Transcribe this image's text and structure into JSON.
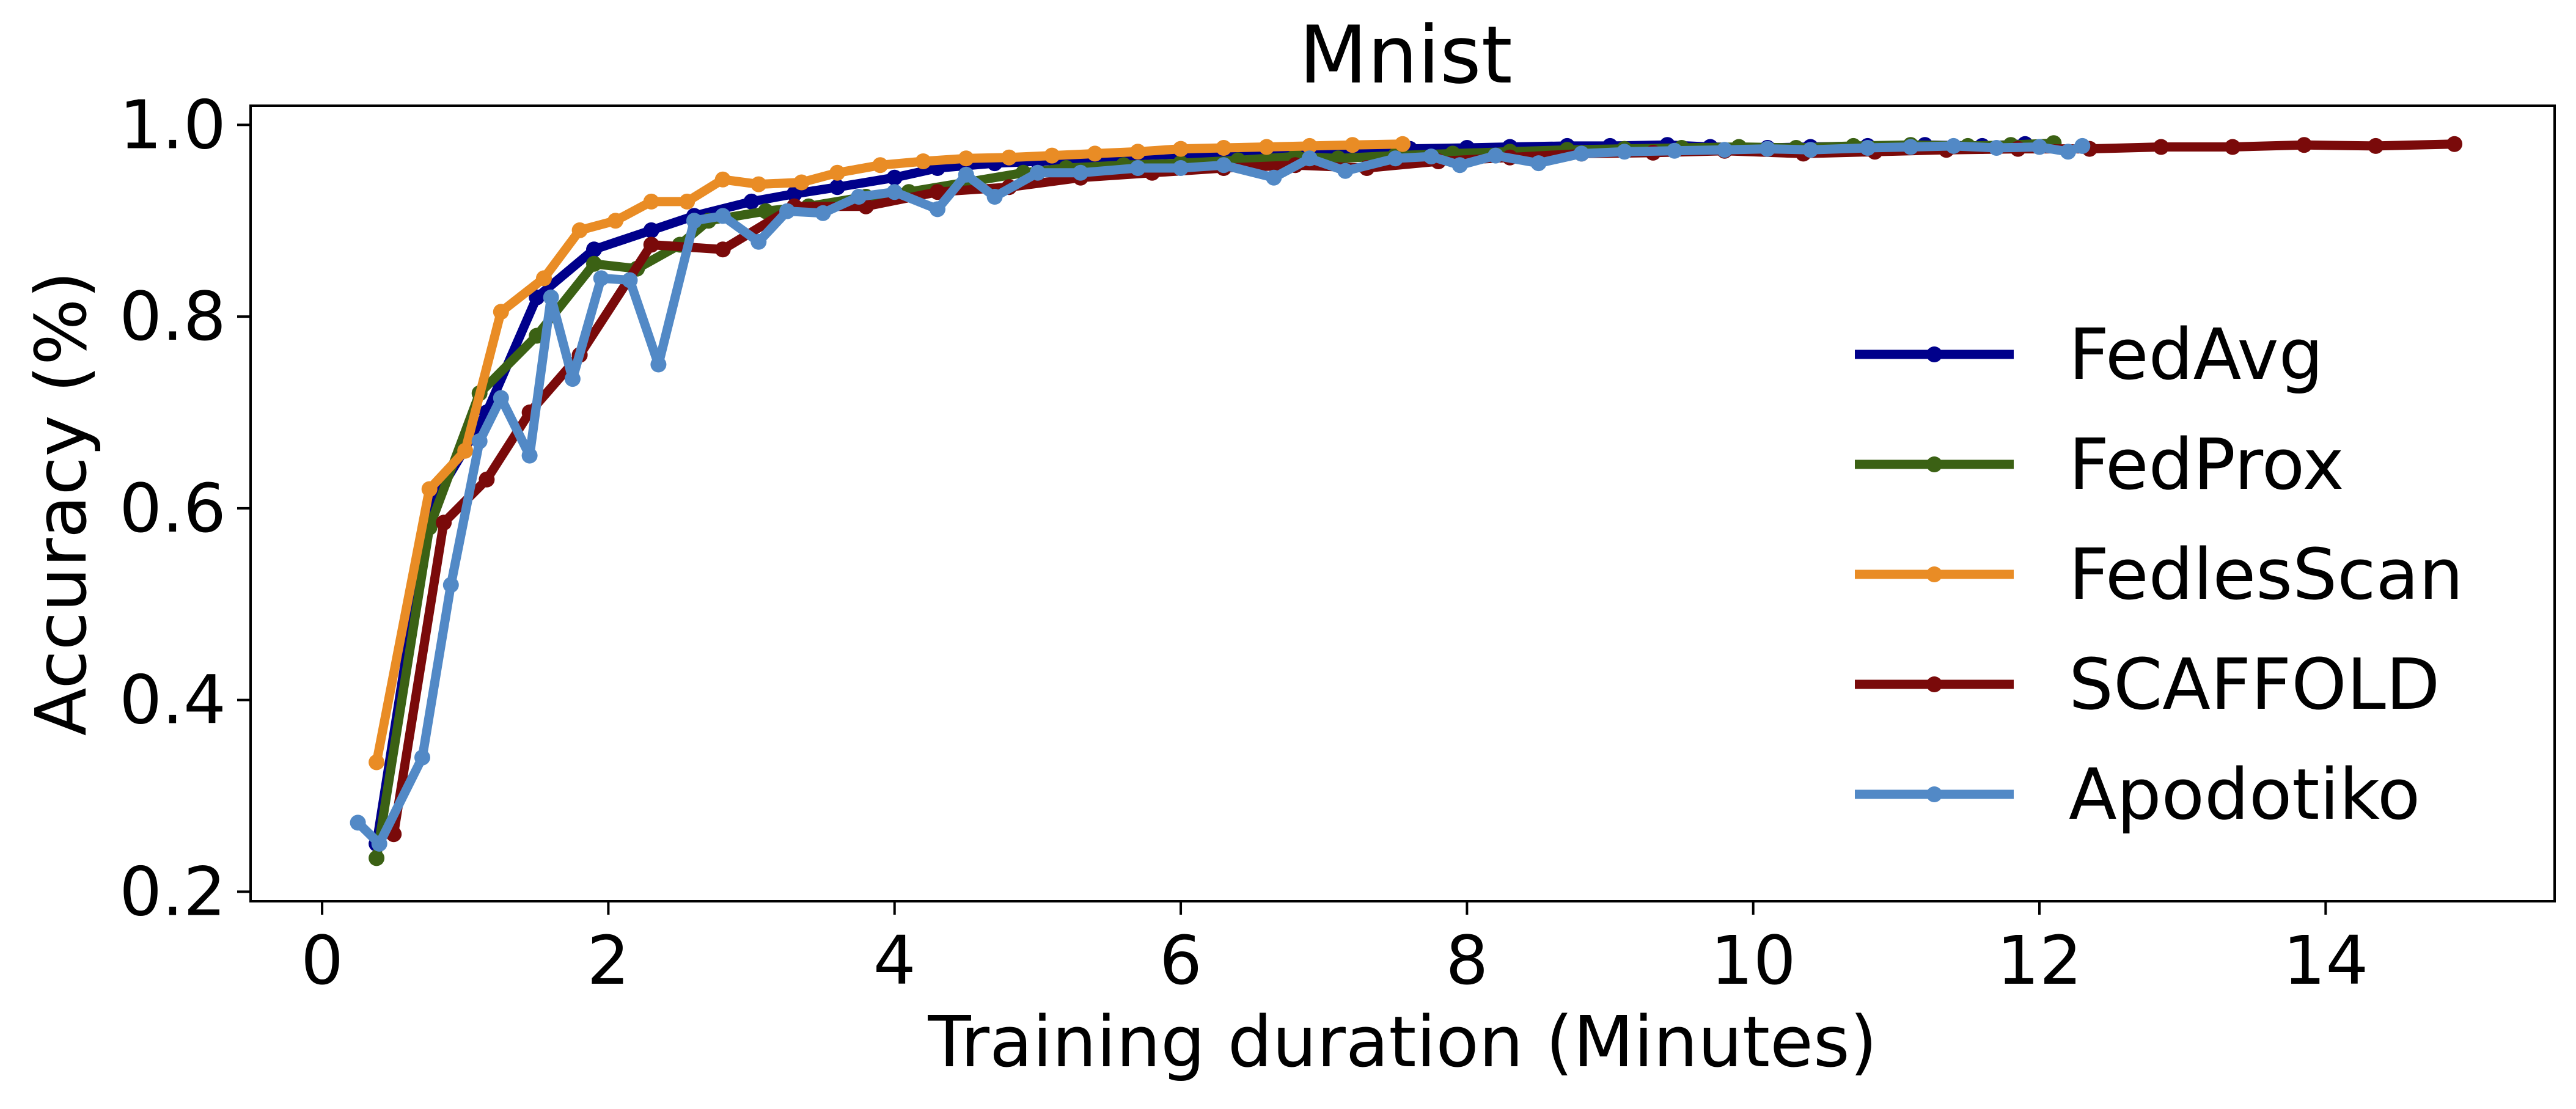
{
  "chart_data": {
    "type": "line",
    "title": "Mnist",
    "xlabel": "Training duration (Minutes)",
    "ylabel": "Accuracy (%)",
    "xlim": [
      -0.5,
      15.6
    ],
    "ylim": [
      0.19,
      1.02
    ],
    "xticks": [
      0,
      2,
      4,
      6,
      8,
      10,
      12,
      14
    ],
    "yticks": [
      0.2,
      0.4,
      0.6,
      0.8,
      1.0
    ],
    "xtick_labels": [
      "0",
      "2",
      "4",
      "6",
      "8",
      "10",
      "12",
      "14"
    ],
    "ytick_labels": [
      "0.2",
      "0.4",
      "0.6",
      "0.8",
      "1.0"
    ],
    "grid": false,
    "legend_position": "right",
    "series": [
      {
        "name": "FedAvg",
        "color": "#00008b",
        "points": [
          [
            0.38,
            0.25
          ],
          [
            0.75,
            0.6
          ],
          [
            1.15,
            0.7
          ],
          [
            1.5,
            0.82
          ],
          [
            1.9,
            0.87
          ],
          [
            2.3,
            0.89
          ],
          [
            2.6,
            0.905
          ],
          [
            3.0,
            0.92
          ],
          [
            3.3,
            0.928
          ],
          [
            3.6,
            0.935
          ],
          [
            4.0,
            0.945
          ],
          [
            4.3,
            0.955
          ],
          [
            4.7,
            0.96
          ],
          [
            5.0,
            0.962
          ],
          [
            5.4,
            0.965
          ],
          [
            5.7,
            0.968
          ],
          [
            6.1,
            0.97
          ],
          [
            6.5,
            0.972
          ],
          [
            6.8,
            0.973
          ],
          [
            7.2,
            0.974
          ],
          [
            7.6,
            0.975
          ],
          [
            8.0,
            0.976
          ],
          [
            8.3,
            0.977
          ],
          [
            8.7,
            0.978
          ],
          [
            9.0,
            0.978
          ],
          [
            9.4,
            0.979
          ],
          [
            9.7,
            0.977
          ],
          [
            10.1,
            0.976
          ],
          [
            10.4,
            0.977
          ],
          [
            10.8,
            0.978
          ],
          [
            11.2,
            0.979
          ],
          [
            11.6,
            0.978
          ],
          [
            11.9,
            0.98
          ]
        ]
      },
      {
        "name": "FedProx",
        "color": "#3b6114",
        "points": [
          [
            0.38,
            0.235
          ],
          [
            0.75,
            0.58
          ],
          [
            1.1,
            0.72
          ],
          [
            1.5,
            0.78
          ],
          [
            1.9,
            0.855
          ],
          [
            2.2,
            0.85
          ],
          [
            2.5,
            0.875
          ],
          [
            2.7,
            0.9
          ],
          [
            3.1,
            0.91
          ],
          [
            3.4,
            0.915
          ],
          [
            3.8,
            0.925
          ],
          [
            4.1,
            0.93
          ],
          [
            4.5,
            0.94
          ],
          [
            4.9,
            0.95
          ],
          [
            5.2,
            0.955
          ],
          [
            5.6,
            0.958
          ],
          [
            6.0,
            0.96
          ],
          [
            6.4,
            0.963
          ],
          [
            6.8,
            0.967
          ],
          [
            7.1,
            0.965
          ],
          [
            7.5,
            0.968
          ],
          [
            7.9,
            0.97
          ],
          [
            8.3,
            0.972
          ],
          [
            8.7,
            0.974
          ],
          [
            9.1,
            0.975
          ],
          [
            9.5,
            0.976
          ],
          [
            9.9,
            0.977
          ],
          [
            10.3,
            0.976
          ],
          [
            10.7,
            0.978
          ],
          [
            11.1,
            0.979
          ],
          [
            11.5,
            0.978
          ],
          [
            11.8,
            0.979
          ],
          [
            12.1,
            0.981
          ]
        ]
      },
      {
        "name": "FedlesScan",
        "color": "#e98c25",
        "points": [
          [
            0.38,
            0.335
          ],
          [
            0.75,
            0.62
          ],
          [
            1.0,
            0.66
          ],
          [
            1.25,
            0.805
          ],
          [
            1.55,
            0.84
          ],
          [
            1.8,
            0.89
          ],
          [
            2.05,
            0.9
          ],
          [
            2.3,
            0.92
          ],
          [
            2.55,
            0.92
          ],
          [
            2.8,
            0.943
          ],
          [
            3.05,
            0.938
          ],
          [
            3.35,
            0.94
          ],
          [
            3.6,
            0.95
          ],
          [
            3.9,
            0.958
          ],
          [
            4.2,
            0.962
          ],
          [
            4.5,
            0.965
          ],
          [
            4.8,
            0.966
          ],
          [
            5.1,
            0.968
          ],
          [
            5.4,
            0.97
          ],
          [
            5.7,
            0.972
          ],
          [
            6.0,
            0.975
          ],
          [
            6.3,
            0.976
          ],
          [
            6.6,
            0.977
          ],
          [
            6.9,
            0.978
          ],
          [
            7.2,
            0.979
          ],
          [
            7.55,
            0.98
          ]
        ]
      },
      {
        "name": "SCAFFOLD",
        "color": "#7a0a0a",
        "points": [
          [
            0.5,
            0.26
          ],
          [
            0.85,
            0.585
          ],
          [
            1.15,
            0.63
          ],
          [
            1.45,
            0.7
          ],
          [
            1.8,
            0.76
          ],
          [
            2.3,
            0.875
          ],
          [
            2.8,
            0.87
          ],
          [
            3.3,
            0.915
          ],
          [
            3.8,
            0.915
          ],
          [
            4.3,
            0.93
          ],
          [
            4.8,
            0.935
          ],
          [
            5.3,
            0.945
          ],
          [
            5.8,
            0.95
          ],
          [
            6.3,
            0.955
          ],
          [
            6.8,
            0.958
          ],
          [
            7.3,
            0.955
          ],
          [
            7.8,
            0.962
          ],
          [
            8.3,
            0.966
          ],
          [
            8.8,
            0.97
          ],
          [
            9.3,
            0.971
          ],
          [
            9.8,
            0.973
          ],
          [
            10.35,
            0.97
          ],
          [
            10.85,
            0.972
          ],
          [
            11.35,
            0.974
          ],
          [
            11.85,
            0.975
          ],
          [
            12.35,
            0.975
          ],
          [
            12.85,
            0.977
          ],
          [
            13.35,
            0.977
          ],
          [
            13.85,
            0.979
          ],
          [
            14.35,
            0.978
          ],
          [
            14.9,
            0.98
          ]
        ]
      },
      {
        "name": "Apodotiko",
        "color": "#5289c6",
        "points": [
          [
            0.25,
            0.272
          ],
          [
            0.4,
            0.25
          ],
          [
            0.7,
            0.34
          ],
          [
            0.9,
            0.52
          ],
          [
            1.1,
            0.67
          ],
          [
            1.25,
            0.715
          ],
          [
            1.45,
            0.655
          ],
          [
            1.6,
            0.82
          ],
          [
            1.75,
            0.735
          ],
          [
            1.95,
            0.84
          ],
          [
            2.15,
            0.838
          ],
          [
            2.35,
            0.75
          ],
          [
            2.6,
            0.9
          ],
          [
            2.8,
            0.905
          ],
          [
            3.05,
            0.878
          ],
          [
            3.25,
            0.91
          ],
          [
            3.5,
            0.908
          ],
          [
            3.75,
            0.925
          ],
          [
            4.0,
            0.93
          ],
          [
            4.3,
            0.912
          ],
          [
            4.5,
            0.948
          ],
          [
            4.7,
            0.925
          ],
          [
            5.0,
            0.95
          ],
          [
            5.3,
            0.95
          ],
          [
            5.7,
            0.955
          ],
          [
            6.0,
            0.955
          ],
          [
            6.3,
            0.958
          ],
          [
            6.65,
            0.945
          ],
          [
            6.9,
            0.965
          ],
          [
            7.15,
            0.952
          ],
          [
            7.5,
            0.965
          ],
          [
            7.75,
            0.967
          ],
          [
            7.95,
            0.958
          ],
          [
            8.2,
            0.968
          ],
          [
            8.5,
            0.96
          ],
          [
            8.8,
            0.97
          ],
          [
            9.1,
            0.972
          ],
          [
            9.45,
            0.973
          ],
          [
            9.8,
            0.974
          ],
          [
            10.1,
            0.975
          ],
          [
            10.4,
            0.974
          ],
          [
            10.8,
            0.976
          ],
          [
            11.1,
            0.977
          ],
          [
            11.4,
            0.978
          ],
          [
            11.7,
            0.976
          ],
          [
            12.0,
            0.977
          ],
          [
            12.2,
            0.972
          ],
          [
            12.3,
            0.978
          ]
        ]
      }
    ]
  }
}
